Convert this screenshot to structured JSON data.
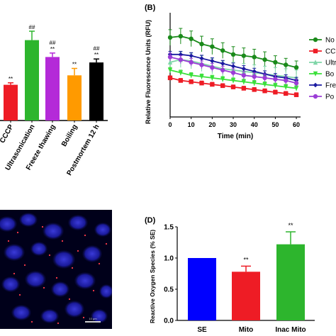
{
  "chart_data": [
    {
      "id": "A",
      "type": "bar",
      "panel_label": "",
      "categories": [
        "CCCP",
        "Ultrasonication",
        "Freeze thawing",
        "Boiling",
        "Postmortem  12 h"
      ],
      "tick_labels": [
        "CCCP",
        "Ultrasonication",
        "Freeze thawing",
        "Boiling",
        "Postmortem  12 h"
      ],
      "values": [
        0.72,
        1.62,
        1.28,
        0.91,
        1.17
      ],
      "errors": [
        0.04,
        0.18,
        0.08,
        0.14,
        0.07
      ],
      "annotations": [
        "**",
        "##",
        "##\n**",
        "**",
        "##\n**"
      ],
      "colors": [
        "#ee1c25",
        "#2db52d",
        "#b42ad8",
        "#ff9a00",
        "#000000"
      ],
      "ylim": [
        0,
        2.0
      ],
      "xlabel": "",
      "ylabel": ""
    },
    {
      "id": "B",
      "type": "line",
      "panel_label": "(B)",
      "x": [
        0,
        5,
        10,
        15,
        20,
        25,
        30,
        35,
        40,
        45,
        50,
        55,
        60
      ],
      "xticks": [
        0,
        10,
        20,
        30,
        40,
        50,
        60
      ],
      "xlim": [
        0,
        62
      ],
      "ylim": [
        0,
        40
      ],
      "yticks": [
        0,
        10,
        20,
        30,
        40
      ],
      "xlabel": "Time (min)",
      "ylabel": "Relative Fluorescence Units (RFU)",
      "legend_position": "right",
      "series": [
        {
          "name": "No",
          "color": "#1a8a1a",
          "marker": "circle",
          "values": [
            30.5,
            31,
            30,
            28,
            27,
            25.5,
            24,
            23.5,
            23,
            22,
            21,
            20,
            19
          ],
          "errors": [
            3,
            3,
            3,
            3,
            3,
            3,
            3,
            3,
            3,
            3,
            2.5,
            2.5,
            2.5
          ]
        },
        {
          "name": "CC",
          "color": "#ee1c25",
          "marker": "square",
          "values": [
            15,
            14,
            13.5,
            13,
            12.5,
            12,
            11.5,
            11,
            10.5,
            10,
            9.5,
            9,
            8.5
          ],
          "errors": [
            0.8,
            0.8,
            0.8,
            0.8,
            0.8,
            0.8,
            0.8,
            0.8,
            0.8,
            0.8,
            0.8,
            0.8,
            0.8
          ]
        },
        {
          "name": "Ultr",
          "color": "#7fd6a8",
          "marker": "triangle-up",
          "values": [
            21,
            22,
            21.5,
            20.5,
            19.5,
            18.5,
            18,
            17.5,
            17,
            16.5,
            16,
            15.5,
            15
          ],
          "errors": [
            3,
            3,
            3,
            3,
            3,
            3,
            3,
            3,
            3,
            3,
            3,
            3,
            3
          ]
        },
        {
          "name": "Bo",
          "color": "#3ae03a",
          "marker": "triangle-down",
          "values": [
            18,
            17,
            16,
            15.5,
            15,
            14.5,
            14,
            13.5,
            13,
            12.5,
            12,
            11.5,
            11
          ],
          "errors": [
            1,
            1,
            1,
            1,
            1,
            1,
            1,
            1,
            1,
            1,
            1,
            1,
            1
          ]
        },
        {
          "name": "Free",
          "color": "#1a1aa0",
          "marker": "diamond",
          "values": [
            24,
            24,
            23.5,
            22.5,
            21.5,
            20.5,
            19.5,
            18.5,
            17.5,
            16.5,
            15.5,
            15,
            14
          ],
          "errors": [
            1.2,
            1.2,
            1.2,
            1.2,
            1.2,
            1.2,
            1.2,
            1.2,
            1.2,
            1.2,
            1.2,
            1.2,
            1.2
          ]
        },
        {
          "name": "Po",
          "color": "#9b3dd6",
          "marker": "circle",
          "values": [
            23,
            22,
            21,
            20,
            19,
            18,
            17,
            16,
            15.5,
            15,
            14.5,
            14,
            13
          ],
          "errors": [
            1.5,
            1.5,
            1.5,
            1.5,
            1.5,
            1.5,
            1.5,
            1.5,
            1.5,
            1.5,
            1.5,
            1.5,
            1.5
          ]
        }
      ]
    },
    {
      "id": "D",
      "type": "bar",
      "panel_label": "(D)",
      "categories": [
        "SE",
        "Mito",
        "Inac Mito"
      ],
      "values": [
        1.0,
        0.78,
        1.22
      ],
      "errors": [
        0,
        0.09,
        0.2
      ],
      "annotations": [
        "",
        "**",
        "**"
      ],
      "colors": [
        "#0000ff",
        "#ee1c25",
        "#2db52d"
      ],
      "ylim": [
        0,
        1.5
      ],
      "yticks": [
        "0.0",
        "0.5",
        "1.0",
        "1.5"
      ],
      "xlabel": "",
      "ylabel": "Reactive Oxygen Species (% SE)"
    }
  ],
  "microscopy": {
    "background_color": "#00001a",
    "scalebar_label": "10 μm"
  }
}
